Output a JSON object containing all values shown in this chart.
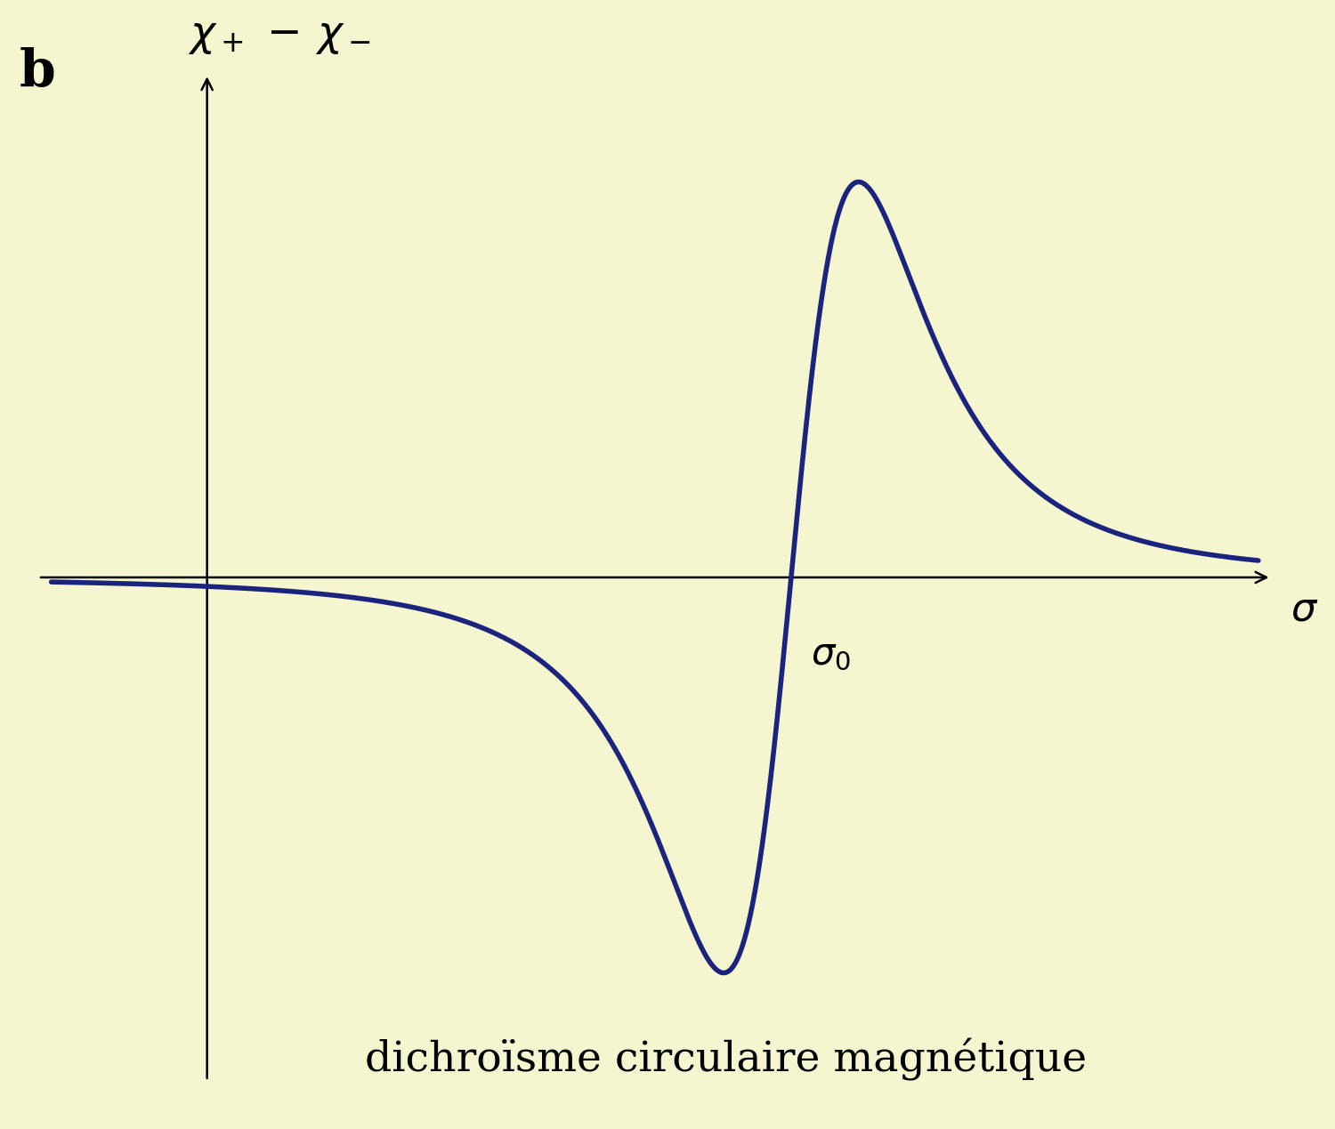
{
  "background_color": "#f5f5d0",
  "curve_color": "#1a237e",
  "axis_color": "#000000",
  "label_b": "b",
  "caption": "dichroïsme circulaire magnétique",
  "curve_linewidth": 4.0,
  "axis_linewidth": 1.8,
  "fig_width": 15.0,
  "fig_height": 12.69,
  "xlim": [
    -1.5,
    8.5
  ],
  "ylim": [
    -3.0,
    3.0
  ],
  "x_axis_start": -1.3,
  "x_axis_end": 8.2,
  "y_axis_start": -2.8,
  "y_axis_end": 2.8,
  "axis_origin_x": 0.0,
  "axis_origin_y": 0.0,
  "sigma0_x": 4.5,
  "gamma": 0.9
}
